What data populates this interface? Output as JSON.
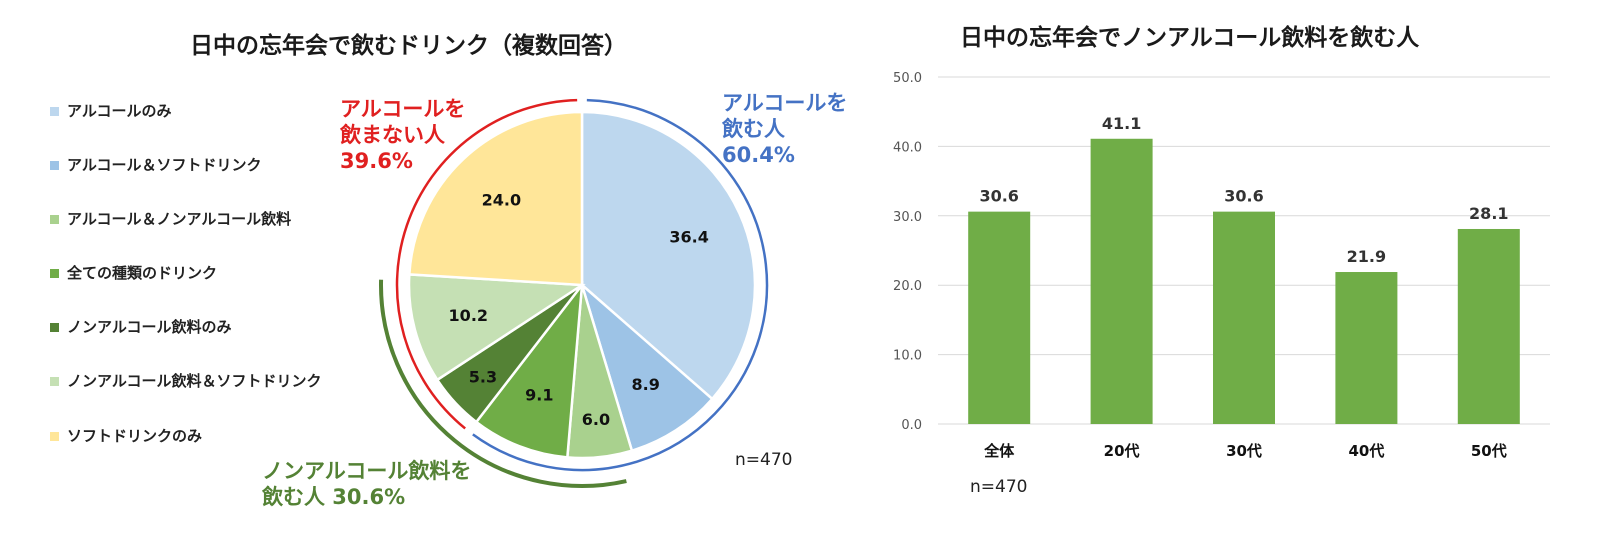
{
  "colors": {
    "alc_only": "#bdd7ee",
    "alc_soft": "#9dc3e6",
    "alc_nonalc": "#a9d18e",
    "all_types": "#70ad47",
    "nonalc_only": "#548235",
    "nonalc_soft": "#c5e0b4",
    "soft_only": "#ffe699",
    "bar": "#70ad47",
    "red": "#e02020",
    "blue": "#4472c4",
    "green": "#548235"
  },
  "chart_data": [
    {
      "type": "pie",
      "title": "日中の忘年会で飲むドリンク（複数回答）",
      "categories": [
        "アルコールのみ",
        "アルコール＆ソフトドリンク",
        "アルコール＆ノンアルコール飲料",
        "全ての種類のドリンク",
        "ノンアルコール飲料のみ",
        "ノンアルコール飲料＆ソフトドリンク",
        "ソフトドリンクのみ"
      ],
      "values": [
        36.4,
        8.9,
        6.0,
        9.1,
        5.3,
        10.2,
        24.0
      ],
      "labels": [
        "36.4",
        "8.9",
        "6.0",
        "9.1",
        "5.3",
        "10.2",
        "24.0"
      ],
      "legend_position": "left",
      "annotations": [
        {
          "line1": "アルコールを",
          "line2": "飲まない人",
          "line3": "39.6%"
        },
        {
          "line1": "アルコールを",
          "line2": "飲む人",
          "line3": "60.4%"
        },
        {
          "line1": "ノンアルコール飲料を",
          "line2": "飲む人 30.6%"
        }
      ],
      "note": "n=470"
    },
    {
      "type": "bar",
      "title": "日中の忘年会でノンアルコール飲料を飲む人",
      "categories": [
        "全体",
        "20代",
        "30代",
        "40代",
        "50代"
      ],
      "values": [
        30.6,
        41.1,
        30.6,
        21.9,
        28.1
      ],
      "value_labels": [
        "30.6",
        "41.1",
        "30.6",
        "21.9",
        "28.1"
      ],
      "ylim": [
        0,
        50
      ],
      "yticks": [
        "0.0",
        "10.0",
        "20.0",
        "30.0",
        "40.0",
        "50.0"
      ],
      "grid": true,
      "note": "n=470"
    }
  ]
}
